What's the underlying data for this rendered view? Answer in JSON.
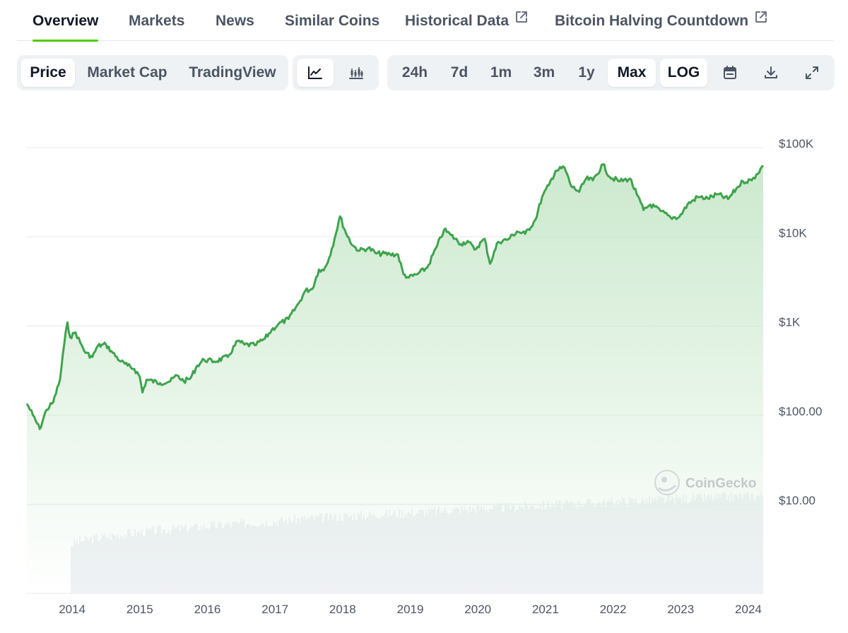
{
  "tabs": [
    {
      "label": "Overview",
      "active": true
    },
    {
      "label": "Markets"
    },
    {
      "label": "News"
    },
    {
      "label": "Similar Coins"
    },
    {
      "label": "Historical Data",
      "icon": "external-link-icon"
    },
    {
      "label": "Bitcoin Halving Countdown",
      "icon": "external-link-icon"
    }
  ],
  "toolbar": {
    "metric_tabs": [
      "Price",
      "Market Cap",
      "TradingView"
    ],
    "metric_selected": "Price",
    "chart_types": [
      {
        "icon": "line-chart-icon",
        "selected": true
      },
      {
        "icon": "candlestick-chart-icon",
        "selected": false
      }
    ],
    "ranges": [
      "24h",
      "7d",
      "1m",
      "3m",
      "1y",
      "Max"
    ],
    "range_selected": "Max",
    "log_label": "LOG",
    "log_enabled": true,
    "actions": [
      "calendar-icon",
      "download-icon",
      "fullscreen-icon"
    ]
  },
  "colors": {
    "accent": "#4bcc00",
    "price_line": "#3fa34d",
    "area_fill": "#d8efd9",
    "volume": "#eceef2",
    "grid": "#e5e7eb"
  },
  "chart_data": {
    "type": "area",
    "scale": "log",
    "grid": true,
    "watermark": "CoinGecko",
    "y_ticks": [
      {
        "value": 100000,
        "label": "$100K"
      },
      {
        "value": 10000,
        "label": "$10K"
      },
      {
        "value": 1000,
        "label": "$1K"
      },
      {
        "value": 100,
        "label": "$100.00"
      },
      {
        "value": 10,
        "label": "$10.00"
      }
    ],
    "ylim": [
      10,
      100000
    ],
    "x_ticks": [
      2014,
      2015,
      2016,
      2017,
      2018,
      2019,
      2020,
      2021,
      2022,
      2023,
      2024
    ],
    "xlim": [
      2013.33,
      2024.22
    ],
    "series": [
      {
        "points": [
          [
            2013.33,
            135
          ],
          [
            2013.42,
            100
          ],
          [
            2013.52,
            70
          ],
          [
            2013.62,
            115
          ],
          [
            2013.72,
            140
          ],
          [
            2013.82,
            250
          ],
          [
            2013.88,
            600
          ],
          [
            2013.93,
            1100
          ],
          [
            2013.97,
            750
          ],
          [
            2014.05,
            850
          ],
          [
            2014.12,
            650
          ],
          [
            2014.2,
            500
          ],
          [
            2014.3,
            450
          ],
          [
            2014.38,
            600
          ],
          [
            2014.5,
            620
          ],
          [
            2014.6,
            500
          ],
          [
            2014.72,
            400
          ],
          [
            2014.82,
            360
          ],
          [
            2014.92,
            330
          ],
          [
            2015.0,
            270
          ],
          [
            2015.04,
            180
          ],
          [
            2015.1,
            250
          ],
          [
            2015.3,
            230
          ],
          [
            2015.45,
            240
          ],
          [
            2015.55,
            280
          ],
          [
            2015.65,
            240
          ],
          [
            2015.75,
            260
          ],
          [
            2015.85,
            360
          ],
          [
            2015.95,
            420
          ],
          [
            2016.1,
            400
          ],
          [
            2016.3,
            450
          ],
          [
            2016.45,
            680
          ],
          [
            2016.55,
            620
          ],
          [
            2016.7,
            610
          ],
          [
            2016.85,
            720
          ],
          [
            2016.95,
            900
          ],
          [
            2017.05,
            1050
          ],
          [
            2017.2,
            1200
          ],
          [
            2017.35,
            1800
          ],
          [
            2017.45,
            2500
          ],
          [
            2017.55,
            2600
          ],
          [
            2017.65,
            4300
          ],
          [
            2017.72,
            4200
          ],
          [
            2017.8,
            5800
          ],
          [
            2017.88,
            9500
          ],
          [
            2017.96,
            17000
          ],
          [
            2018.05,
            11000
          ],
          [
            2018.15,
            8000
          ],
          [
            2018.25,
            7000
          ],
          [
            2018.38,
            7500
          ],
          [
            2018.5,
            6500
          ],
          [
            2018.7,
            6400
          ],
          [
            2018.82,
            6300
          ],
          [
            2018.9,
            3800
          ],
          [
            2018.98,
            3500
          ],
          [
            2019.1,
            3800
          ],
          [
            2019.25,
            4500
          ],
          [
            2019.4,
            8000
          ],
          [
            2019.5,
            12000
          ],
          [
            2019.6,
            10500
          ],
          [
            2019.75,
            8300
          ],
          [
            2019.85,
            9000
          ],
          [
            2019.95,
            7200
          ],
          [
            2020.1,
            9500
          ],
          [
            2020.18,
            5000
          ],
          [
            2020.3,
            8800
          ],
          [
            2020.45,
            9400
          ],
          [
            2020.58,
            11500
          ],
          [
            2020.7,
            10800
          ],
          [
            2020.85,
            15500
          ],
          [
            2020.95,
            28000
          ],
          [
            2021.05,
            38000
          ],
          [
            2021.15,
            55000
          ],
          [
            2021.28,
            60000
          ],
          [
            2021.38,
            37000
          ],
          [
            2021.5,
            32000
          ],
          [
            2021.6,
            45000
          ],
          [
            2021.7,
            43000
          ],
          [
            2021.85,
            65000
          ],
          [
            2021.95,
            47000
          ],
          [
            2022.1,
            42000
          ],
          [
            2022.25,
            45000
          ],
          [
            2022.35,
            30000
          ],
          [
            2022.45,
            20000
          ],
          [
            2022.55,
            23000
          ],
          [
            2022.7,
            19500
          ],
          [
            2022.85,
            16500
          ],
          [
            2022.98,
            16700
          ],
          [
            2023.1,
            23000
          ],
          [
            2023.25,
            28000
          ],
          [
            2023.4,
            27000
          ],
          [
            2023.55,
            30000
          ],
          [
            2023.7,
            26500
          ],
          [
            2023.82,
            34500
          ],
          [
            2023.92,
            42000
          ],
          [
            2024.05,
            43000
          ],
          [
            2024.12,
            50000
          ],
          [
            2024.22,
            63000
          ]
        ]
      }
    ]
  }
}
